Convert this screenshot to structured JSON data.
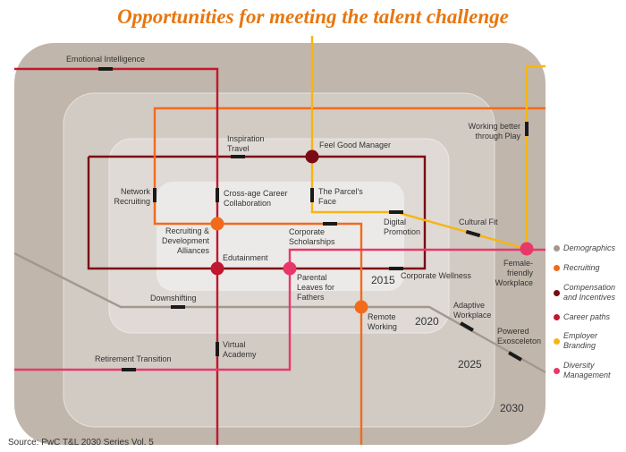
{
  "title": "Opportunities for meeting the talent challenge",
  "source": "Source: PwC T&L 2030 Series Vol. 5",
  "years": [
    "2015",
    "2020",
    "2025",
    "2030"
  ],
  "colors": {
    "demographics": "#a39890",
    "recruiting": "#f26b1d",
    "compensation": "#7a0a14",
    "career": "#c0182f",
    "branding": "#f7b515",
    "diversity": "#e8386a",
    "title": "#e8760e"
  },
  "legend": [
    {
      "label": "Demographics",
      "color": "#a39890"
    },
    {
      "label": "Recruiting",
      "color": "#f26b1d"
    },
    {
      "label": "Compensation and Incentives",
      "color": "#7a0a14"
    },
    {
      "label": "Career paths",
      "color": "#c0182f"
    },
    {
      "label": "Employer Branding",
      "color": "#f7b515"
    },
    {
      "label": "Diversity Management",
      "color": "#e8386a"
    }
  ],
  "stations": {
    "emotional_intelligence": "Emotional Intelligence",
    "inspiration_travel": "Inspiration Travel",
    "feel_good_manager": "Feel Good Manager",
    "network_recruiting": "Network Recruiting",
    "cross_age": "Cross-age Career Collaboration",
    "parcels_face": "The Parcel's Face",
    "working_better": "Working better through Play",
    "recruiting_alliances": "Recruiting & Development Alliances",
    "corporate_scholarships": "Corporate Scholarships",
    "digital_promotion": "Digital Promotion",
    "cultural_fit": "Cultural Fit",
    "edutainment": "Edutainment",
    "female_friendly": "Female-friendly Workplace",
    "parental_leaves": "Parental Leaves for Fathers",
    "corporate_wellness": "Corporate Wellness",
    "downshifting": "Downshifting",
    "remote_working": "Remote Working",
    "adaptive_workplace": "Adaptive Workplace",
    "powered_exo": "Powered Exosceleton",
    "virtual_academy": "Virtual Academy",
    "retirement_transition": "Retirement Transition"
  }
}
